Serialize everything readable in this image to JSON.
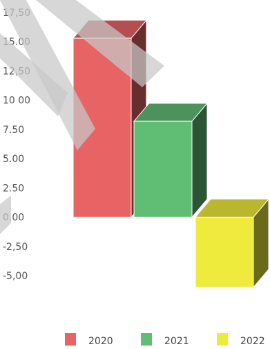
{
  "chart_data": {
    "type": "bar",
    "title": "",
    "xlabel": "",
    "ylabel": "",
    "ylim": [
      -5.0,
      17.5
    ],
    "yticks": [
      "17,50",
      "15.00",
      "12,50",
      "10 00",
      "7.50",
      "5.00",
      "2.50",
      "0.00",
      "-2,50",
      "-5,00"
    ],
    "grid": false,
    "legend": "bottom",
    "series": [
      {
        "name": "2020",
        "value": 15.3,
        "color": "#e86464"
      },
      {
        "name": "2021",
        "value": 8.2,
        "color": "#60bd74"
      },
      {
        "name": "2022",
        "value": -6.0,
        "color": "#eeeb3c"
      }
    ],
    "watermark": {
      "shape": "diagonal-stripes",
      "color": "#c7c7c7"
    }
  }
}
